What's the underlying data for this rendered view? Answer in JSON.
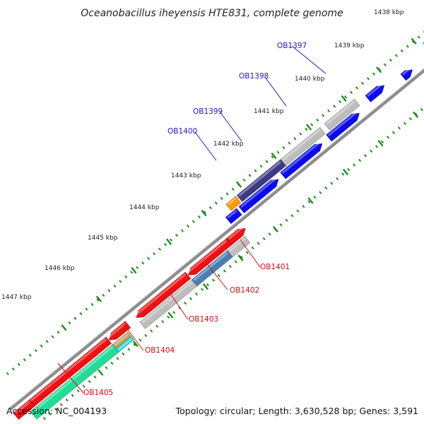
{
  "title": "Oceanobacillus iheyensis HTE831, complete genome",
  "footer": {
    "accession": "Accession: NC_004193",
    "summary": "Topology: circular; Length: 3,630,528 bp; Genes: 3,591"
  },
  "scale_labels": [
    "1438 kbp",
    "1439 kbp",
    "1440 kbp",
    "1441 kbp",
    "1442 kbp",
    "1443 kbp",
    "1444 kbp",
    "1445 kbp",
    "1446 kbp",
    "1447 kbp"
  ],
  "gene_labels": [
    {
      "name": "OB1397",
      "strand": "forward"
    },
    {
      "name": "OB1398",
      "strand": "forward"
    },
    {
      "name": "OB1399",
      "strand": "forward"
    },
    {
      "name": "OB1400",
      "strand": "forward"
    },
    {
      "name": "OB1401",
      "strand": "reverse"
    },
    {
      "name": "OB1402",
      "strand": "reverse"
    },
    {
      "name": "OB1403",
      "strand": "reverse"
    },
    {
      "name": "OB1404",
      "strand": "reverse"
    },
    {
      "name": "OB1405",
      "strand": "reverse"
    }
  ],
  "colors": {
    "forward_label": "#1a1acc",
    "reverse_label": "#cc1111",
    "forward_cds": "#0a0aee",
    "reverse_cds": "#ee1111",
    "backbone": "#8c8c8c",
    "tick": "#1e8c1e",
    "rna_green": "#22dd99",
    "rna_cyan": "#22dddd",
    "grey_feature": "#bdbdbd",
    "navy_feature": "#3a3a88",
    "orange_feature": "#ff9900",
    "steel_feature": "#4a7fb5",
    "tan_feature": "#c2a25a"
  }
}
